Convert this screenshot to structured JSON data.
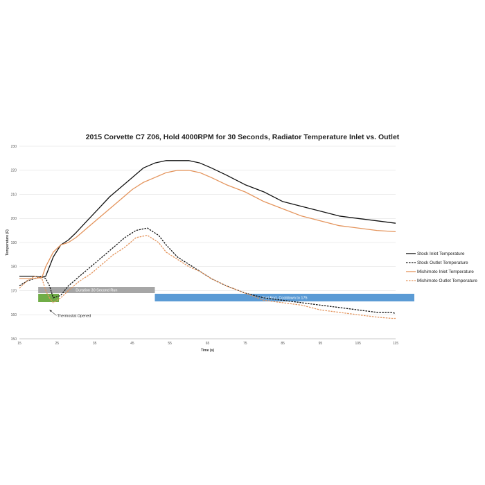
{
  "chart_data": {
    "type": "line",
    "title": "2015 Corvette C7 Z06, Hold 4000RPM for 30 Seconds, Radiator Temperature Inlet vs. Outlet",
    "xlabel": "Time (s)",
    "ylabel": "Temperature (F)",
    "xlim": [
      15,
      115
    ],
    "ylim": [
      150,
      230
    ],
    "xticks": [
      "15",
      "25",
      "35",
      "45",
      "55",
      "65",
      "75",
      "85",
      "95",
      "105",
      "115"
    ],
    "yticks": [
      "150",
      "160",
      "170",
      "180",
      "190",
      "200",
      "210",
      "220",
      "230"
    ],
    "grid": "horizontal",
    "legend_position": "right",
    "series": [
      {
        "name": "Stock Inlet Temperature",
        "color": "#111111",
        "dash": "solid",
        "x": [
          15,
          17,
          19,
          21,
          22,
          24,
          26,
          28,
          30,
          33,
          36,
          39,
          42,
          45,
          48,
          51,
          54,
          57,
          60,
          63,
          66,
          70,
          75,
          80,
          85,
          90,
          95,
          100,
          105,
          110,
          115
        ],
        "y": [
          176,
          176,
          176,
          175.5,
          176,
          184,
          189,
          191,
          194,
          199,
          204,
          209,
          213,
          217,
          221,
          223,
          224,
          224,
          224,
          223,
          221,
          218,
          214,
          211,
          207,
          205,
          203,
          201,
          200,
          199,
          198
        ]
      },
      {
        "name": "Stock Outlet Temperature",
        "color": "#111111",
        "dash": "dashed",
        "x": [
          15,
          17,
          19,
          21,
          22,
          23,
          24,
          26,
          28,
          31,
          34,
          37,
          40,
          43,
          46,
          49,
          50,
          52,
          54,
          57,
          60,
          63,
          66,
          70,
          75,
          80,
          85,
          90,
          95,
          100,
          105,
          110,
          114,
          115
        ],
        "y": [
          172,
          174,
          175,
          176,
          175,
          172,
          167,
          168,
          172,
          176,
          180,
          184,
          188,
          192,
          195,
          196,
          195,
          193,
          189,
          184,
          181,
          178,
          175,
          172,
          169,
          167,
          166,
          165,
          164,
          163,
          162,
          161,
          161,
          160.5
        ]
      },
      {
        "name": "Mishimoto Inlet Temperature",
        "color": "#e4945c",
        "dash": "solid",
        "x": [
          15,
          17,
          19,
          21,
          22,
          24,
          26,
          28,
          30,
          33,
          36,
          39,
          42,
          45,
          48,
          51,
          54,
          57,
          60,
          63,
          66,
          70,
          75,
          80,
          85,
          90,
          95,
          100,
          105,
          110,
          115
        ],
        "y": [
          175,
          175,
          175,
          175.5,
          180,
          186,
          189,
          190,
          192,
          196,
          200,
          204,
          208,
          212,
          215,
          217,
          219,
          220,
          220,
          219,
          217,
          214,
          211,
          207,
          204,
          201,
          199,
          197,
          196,
          195,
          194.5
        ]
      },
      {
        "name": "Mishimoto Outlet Temperature",
        "color": "#e4945c",
        "dash": "dashed",
        "x": [
          15,
          17,
          19,
          21,
          22,
          23,
          24,
          26,
          28,
          31,
          34,
          37,
          40,
          43,
          46,
          49,
          50,
          52,
          54,
          57,
          60,
          63,
          66,
          70,
          75,
          80,
          85,
          90,
          95,
          100,
          105,
          110,
          114,
          115
        ],
        "y": [
          171,
          174,
          176,
          175,
          170,
          167,
          165,
          167,
          170,
          174,
          177,
          181,
          185,
          188,
          192,
          193,
          192,
          190,
          186,
          183,
          180,
          178,
          175,
          172,
          169,
          166,
          165,
          164,
          162,
          161,
          160,
          159,
          158.5,
          158.5
        ]
      }
    ],
    "annotations": [
      {
        "label": "Duration 30 Second Run",
        "x_start": 20,
        "x_end": 51,
        "color": "#a6a6a6"
      },
      {
        "label": "Test End, Cooldown to 175",
        "x_start": 51,
        "x_end": 120,
        "color": "#5b9bd5"
      },
      {
        "label": "",
        "x_start": 20,
        "x_end": 25.5,
        "color": "#70ad47"
      }
    ],
    "callout": {
      "label": "Thermostat Opened",
      "x": 23,
      "y": 162
    }
  }
}
